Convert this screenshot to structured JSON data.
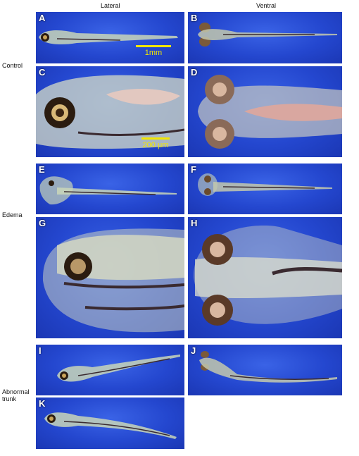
{
  "columns": {
    "lateral": "Lateral",
    "ventral": "Ventral"
  },
  "rows": {
    "control": "Control",
    "edema": "Edema",
    "abnormal_line1": "Abnormal",
    "abnormal_line2": "trunk"
  },
  "panels": {
    "A": "A",
    "B": "B",
    "C": "C",
    "D": "D",
    "E": "E",
    "F": "F",
    "G": "G",
    "H": "H",
    "I": "I",
    "J": "J",
    "K": "K"
  },
  "scale_bars": {
    "low_mag": "1mm",
    "high_mag": "200 μm"
  },
  "colors": {
    "background": "#2447cf",
    "scale_bar": "#f2e600",
    "label": "#ffffff"
  }
}
